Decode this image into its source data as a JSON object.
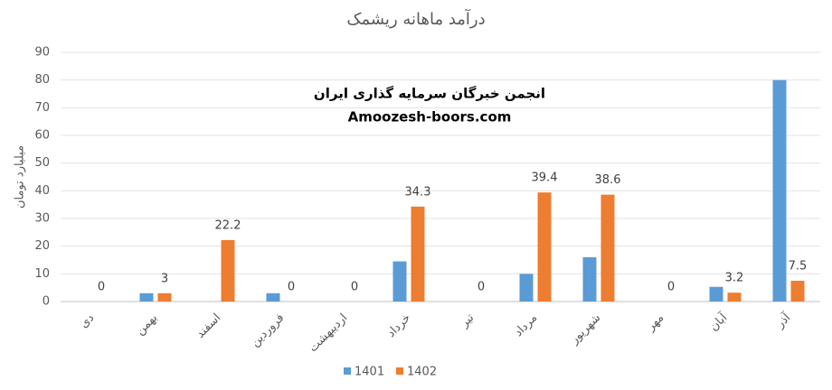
{
  "chart_data": {
    "type": "bar",
    "title": "درآمد ماهانه ریشمک",
    "y_label": "میلیارد تومان",
    "annotations": [
      "انجمن خبرگان سرمایه گذاری ایران",
      "Amoozesh-boors.com"
    ],
    "categories": [
      "دی",
      "بهمن",
      "اسفند",
      "فروردین",
      "اردیبهشت",
      "خرداد",
      "تیر",
      "مرداد",
      "شهریور",
      "مهر",
      "آبان",
      "آذر"
    ],
    "series": [
      {
        "name": "1401",
        "color": "#5b9bd5",
        "data_labels": false,
        "values": [
          0,
          3,
          0,
          3,
          0,
          14.5,
          0,
          10,
          16,
          0,
          5.3,
          80
        ]
      },
      {
        "name": "1402",
        "color": "#ed7d31",
        "data_labels": true,
        "values": [
          0,
          3,
          22.2,
          0,
          0,
          34.3,
          0,
          39.4,
          38.6,
          0,
          3.2,
          7.5
        ]
      }
    ],
    "ylim": [
      0,
      90
    ],
    "yticks": [
      0,
      10,
      20,
      30,
      40,
      50,
      60,
      70,
      80,
      90
    ],
    "grid": true,
    "legend": "bottom"
  }
}
